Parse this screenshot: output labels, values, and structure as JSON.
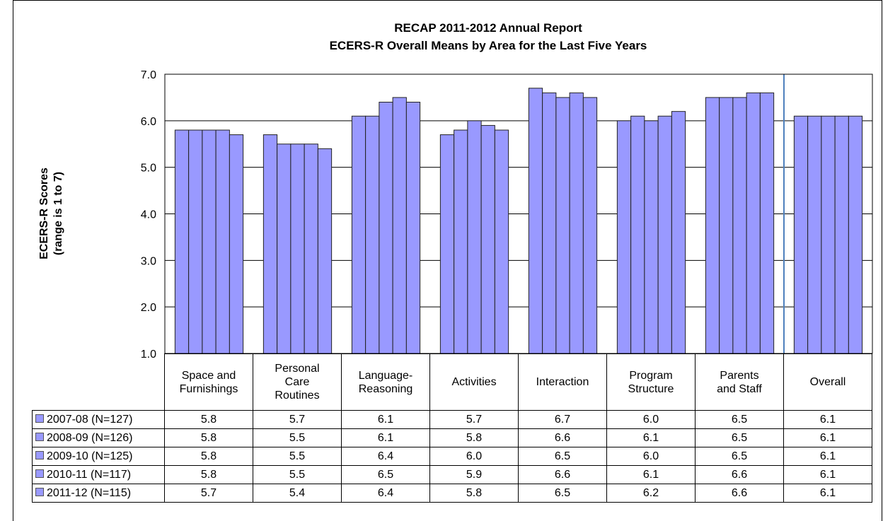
{
  "chart_data": {
    "type": "bar",
    "title": "RECAP 2011-2012 Annual Report",
    "subtitle": "ECERS-R Overall Means by Area for the Last Five Years",
    "ylabel": [
      "ECERS-R Scores",
      "(range is 1 to 7)"
    ],
    "categories": [
      "Space and\nFurnishings",
      "Personal\nCare\nRoutines",
      "Language-\nReasoning",
      "Activities",
      "Interaction",
      "Program\nStructure",
      "Parents\nand Staff",
      "Overall"
    ],
    "series": [
      {
        "name": "2007-08 (N=127)",
        "color": "#9999ff",
        "values": [
          5.8,
          5.7,
          6.1,
          5.7,
          6.7,
          6.0,
          6.5,
          6.1
        ],
        "value_labels": [
          "5.8",
          "5.7",
          "6.1",
          "5.7",
          "6.7",
          "6.0",
          "6.5",
          "6.1"
        ]
      },
      {
        "name": "2008-09 (N=126)",
        "color": "#9999ff",
        "values": [
          5.8,
          5.5,
          6.1,
          5.8,
          6.6,
          6.1,
          6.5,
          6.1
        ],
        "value_labels": [
          "5.8",
          "5.5",
          "6.1",
          "5.8",
          "6.6",
          "6.1",
          "6.5",
          "6.1"
        ]
      },
      {
        "name": "2009-10 (N=125)",
        "color": "#9999ff",
        "values": [
          5.8,
          5.5,
          6.4,
          6.0,
          6.5,
          6.0,
          6.5,
          6.1
        ],
        "value_labels": [
          "5.8",
          "5.5",
          "6.4",
          "6.0",
          "6.5",
          "6.0",
          "6.5",
          "6.1"
        ]
      },
      {
        "name": "2010-11 (N=117)",
        "color": "#9999ff",
        "values": [
          5.8,
          5.5,
          6.5,
          5.9,
          6.6,
          6.1,
          6.6,
          6.1
        ],
        "value_labels": [
          "5.8",
          "5.5",
          "6.5",
          "5.9",
          "6.6",
          "6.1",
          "6.6",
          "6.1"
        ]
      },
      {
        "name": "2011-12 (N=115)",
        "color": "#9999ff",
        "values": [
          5.7,
          5.4,
          6.4,
          5.8,
          6.5,
          6.2,
          6.6,
          6.1
        ],
        "value_labels": [
          "5.7",
          "5.4",
          "6.4",
          "5.8",
          "6.5",
          "6.2",
          "6.6",
          "6.1"
        ]
      }
    ],
    "ylim": [
      1,
      7
    ],
    "yticks": [
      {
        "value": 1,
        "label": "1.0"
      },
      {
        "value": 2,
        "label": "2.0"
      },
      {
        "value": 3,
        "label": "3.0"
      },
      {
        "value": 4,
        "label": "4.0"
      },
      {
        "value": 5,
        "label": "5.0"
      },
      {
        "value": 6,
        "label": "6.0"
      },
      {
        "value": 7,
        "label": "7.0"
      }
    ],
    "grid": true
  }
}
